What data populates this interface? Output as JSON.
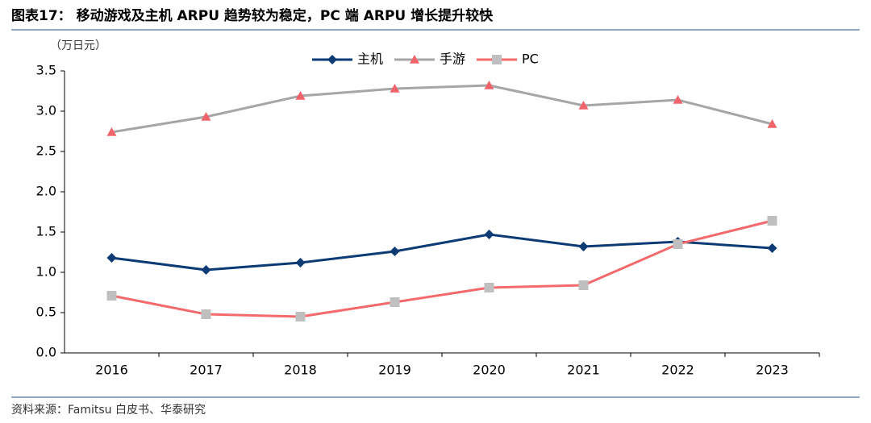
{
  "chart_data": {
    "type": "line",
    "title": "图表17： 移动游戏及主机 ARPU 趋势较为稳定，PC 端 ARPU 增长提升较快",
    "y_label": "（万日元）",
    "source": "资料来源：Famitsu 白皮书、华泰研究",
    "categories": [
      "2016",
      "2017",
      "2018",
      "2019",
      "2020",
      "2021",
      "2022",
      "2023"
    ],
    "series": [
      {
        "name": "主机",
        "color": "#0B3A74",
        "marker": "diamond",
        "marker_color": "#0B3A74",
        "values": [
          1.18,
          1.03,
          1.12,
          1.26,
          1.47,
          1.32,
          1.38,
          1.3
        ]
      },
      {
        "name": "手游",
        "color": "#A6A6A6",
        "marker": "triangle",
        "marker_color": "#F0636B",
        "values": [
          2.74,
          2.93,
          3.19,
          3.28,
          3.32,
          3.07,
          3.14,
          2.84
        ]
      },
      {
        "name": "PC",
        "color": "#F4696B",
        "marker": "square",
        "marker_color": "#BFBFBF",
        "values": [
          0.71,
          0.48,
          0.45,
          0.63,
          0.81,
          0.84,
          1.35,
          1.64
        ]
      }
    ],
    "ylim": [
      0,
      3.5
    ],
    "yticks": [
      {
        "value": 0,
        "label": "0.0"
      },
      0.5,
      {
        "value": 1,
        "label": "1.0"
      },
      1.5,
      {
        "value": 2,
        "label": "2.0"
      },
      2.5,
      {
        "value": 3,
        "label": "3.0"
      },
      3.5
    ],
    "grid": false,
    "legend": "top"
  }
}
